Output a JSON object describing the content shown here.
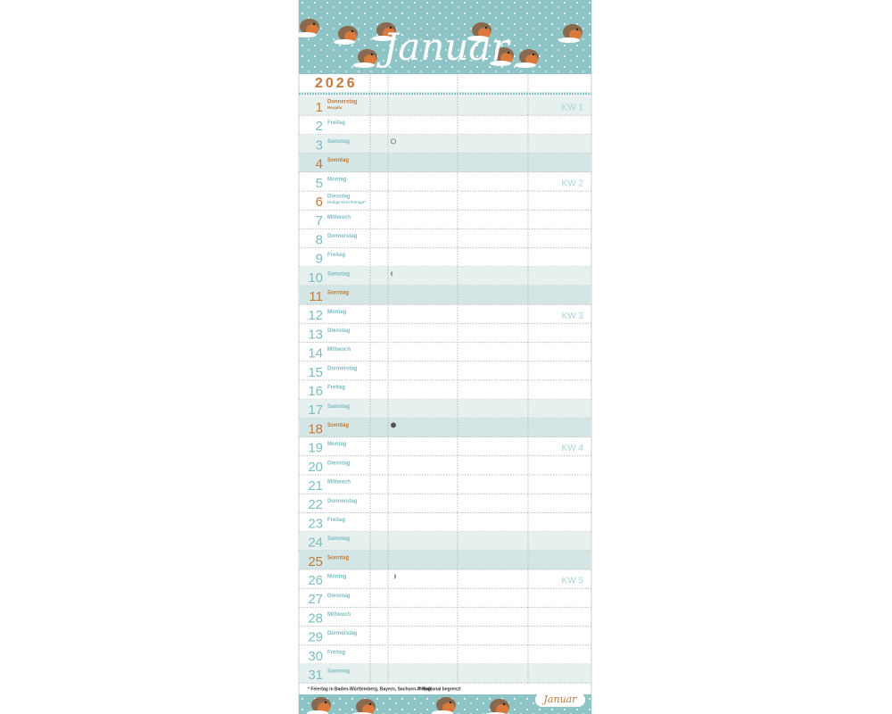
{
  "header": {
    "month": "Januar",
    "year": "2026"
  },
  "days": [
    {
      "day": 1,
      "weekday": "Donnerstag",
      "note": "Neujahr",
      "kind": "holiday",
      "week": "KW 1"
    },
    {
      "day": 2,
      "weekday": "Freitag",
      "kind": "weekday"
    },
    {
      "day": 3,
      "weekday": "Samstag",
      "kind": "saturday",
      "moon": "full"
    },
    {
      "day": 4,
      "weekday": "Sonntag",
      "kind": "sunday"
    },
    {
      "day": 5,
      "weekday": "Montag",
      "kind": "weekday",
      "week": "KW 2"
    },
    {
      "day": 6,
      "weekday": "Dienstag",
      "note": "Heilige Drei Könige*",
      "kind": "regional"
    },
    {
      "day": 7,
      "weekday": "Mittwoch",
      "kind": "weekday"
    },
    {
      "day": 8,
      "weekday": "Donnerstag",
      "kind": "weekday"
    },
    {
      "day": 9,
      "weekday": "Freitag",
      "kind": "weekday"
    },
    {
      "day": 10,
      "weekday": "Samstag",
      "kind": "saturday",
      "moon": "last"
    },
    {
      "day": 11,
      "weekday": "Sonntag",
      "kind": "sunday"
    },
    {
      "day": 12,
      "weekday": "Montag",
      "kind": "weekday",
      "week": "KW 3"
    },
    {
      "day": 13,
      "weekday": "Dienstag",
      "kind": "weekday"
    },
    {
      "day": 14,
      "weekday": "Mittwoch",
      "kind": "weekday"
    },
    {
      "day": 15,
      "weekday": "Donnerstag",
      "kind": "weekday"
    },
    {
      "day": 16,
      "weekday": "Freitag",
      "kind": "weekday"
    },
    {
      "day": 17,
      "weekday": "Samstag",
      "kind": "saturday"
    },
    {
      "day": 18,
      "weekday": "Sonntag",
      "kind": "sunday",
      "moon": "new"
    },
    {
      "day": 19,
      "weekday": "Montag",
      "kind": "weekday",
      "week": "KW 4"
    },
    {
      "day": 20,
      "weekday": "Dienstag",
      "kind": "weekday"
    },
    {
      "day": 21,
      "weekday": "Mittwoch",
      "kind": "weekday"
    },
    {
      "day": 22,
      "weekday": "Donnerstag",
      "kind": "weekday"
    },
    {
      "day": 23,
      "weekday": "Freitag",
      "kind": "weekday"
    },
    {
      "day": 24,
      "weekday": "Samstag",
      "kind": "saturday"
    },
    {
      "day": 25,
      "weekday": "Sonntag",
      "kind": "sunday"
    },
    {
      "day": 26,
      "weekday": "Montag",
      "kind": "weekday",
      "moon": "first",
      "week": "KW 5"
    },
    {
      "day": 27,
      "weekday": "Dienstag",
      "kind": "weekday"
    },
    {
      "day": 28,
      "weekday": "Mittwoch",
      "kind": "weekday"
    },
    {
      "day": 29,
      "weekday": "Donnerstag",
      "kind": "weekday"
    },
    {
      "day": 30,
      "weekday": "Freitag",
      "kind": "weekday"
    },
    {
      "day": 31,
      "weekday": "Samstag",
      "kind": "saturday"
    }
  ],
  "footer": {
    "note1": "* Feiertag in Baden-Württemberg, Bayern, Sachsen-Anhalt",
    "note2": "** Regional begrenzt",
    "badge": "Januar"
  }
}
